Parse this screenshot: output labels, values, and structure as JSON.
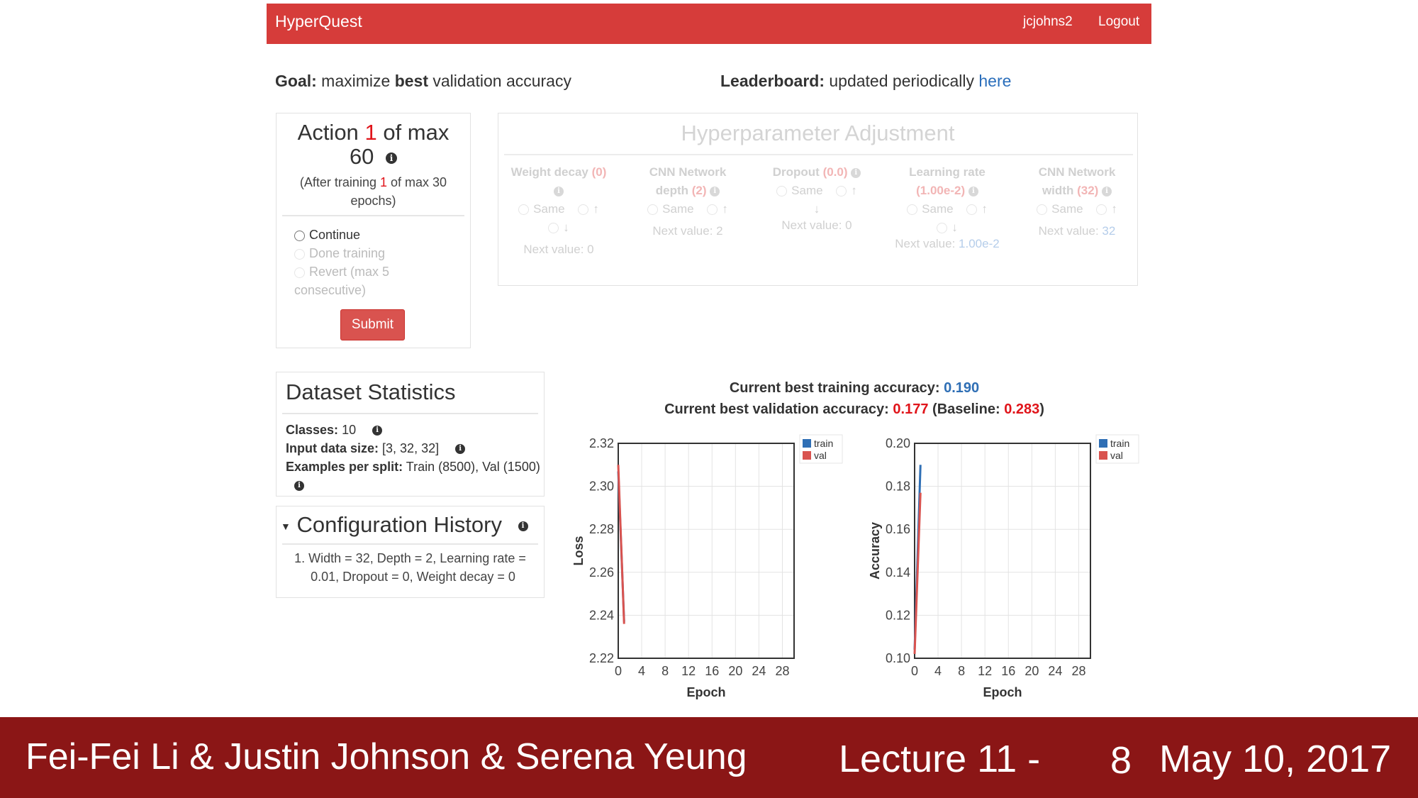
{
  "navbar": {
    "brand": "HyperQuest",
    "user": "jcjohns2",
    "logout": "Logout"
  },
  "goal": {
    "label": "Goal:",
    "text_pre": "maximize",
    "text_bold": "best",
    "text_post": "validation accuracy"
  },
  "leaderboard": {
    "label": "Leaderboard:",
    "text": "updated periodically",
    "link": "here"
  },
  "action_panel": {
    "title_pre": "Action",
    "action_num": "1",
    "title_mid": "of max",
    "max": "60",
    "sub_pre": "(After training",
    "sub_num": "1",
    "sub_post": "of max 30",
    "sub_end": "epochs)",
    "options": [
      "Continue",
      "Done training",
      "Revert (max 5",
      "consecutive)"
    ],
    "submit": "Submit"
  },
  "hyperparams": {
    "title": "Hyperparameter Adjustment",
    "same_label": "Same",
    "columns": [
      {
        "name": "Weight decay",
        "value": "(0)",
        "next_label": "Next value:",
        "next_value": "0"
      },
      {
        "name": "CNN Network",
        "name2": "depth",
        "value": "(2)",
        "next_label": "Next value:",
        "next_value": "2"
      },
      {
        "name": "Dropout",
        "value": "(0.0)",
        "next_label": "Next value:",
        "next_value": "0"
      },
      {
        "name": "Learning rate",
        "value": "(1.00e-2)",
        "next_label": "Next value:",
        "next_value": "1.00e-2"
      },
      {
        "name": "CNN Network",
        "name2": "width",
        "value": "(32)",
        "next_label": "Next value:",
        "next_value": "32"
      }
    ]
  },
  "dataset": {
    "title": "Dataset Statistics",
    "classes_label": "Classes:",
    "classes_value": "10",
    "input_label": "Input data size:",
    "input_value": "[3, 32, 32]",
    "examples_label": "Examples per split:",
    "examples_value": "Train (8500), Val (1500)"
  },
  "config_history": {
    "title": "Configuration History",
    "items": [
      "1. Width = 32, Depth = 2, Learning rate =",
      "0.01, Dropout = 0, Weight decay = 0"
    ]
  },
  "summary": {
    "train_label": "Current best training accuracy:",
    "train_value": "0.190",
    "val_label": "Current best validation accuracy:",
    "val_value": "0.177",
    "baseline_pre": "(Baseline:",
    "baseline_value": "0.283",
    "baseline_post": ")"
  },
  "colors": {
    "train": "#2f6fb5",
    "val": "#d9534f",
    "navbar": "#d63c3a",
    "footer": "#8b1616"
  },
  "chart_data": [
    {
      "type": "line",
      "xlabel": "Epoch",
      "ylabel": "Loss",
      "xlim": [
        0,
        30
      ],
      "ylim": [
        2.22,
        2.32
      ],
      "xticks": [
        "0",
        "4",
        "8",
        "12",
        "16",
        "20",
        "24",
        "28"
      ],
      "yticks": [
        "2.32",
        "2.30",
        "2.28",
        "2.26",
        "2.24",
        "2.22"
      ],
      "grid": true,
      "legend": "top-right",
      "series": [
        {
          "name": "train",
          "x": [
            0,
            1
          ],
          "y": [
            2.307,
            2.237
          ]
        },
        {
          "name": "val",
          "x": [
            0,
            1
          ],
          "y": [
            2.31,
            2.236
          ]
        }
      ]
    },
    {
      "type": "line",
      "xlabel": "Epoch",
      "ylabel": "Accuracy",
      "xlim": [
        0,
        30
      ],
      "ylim": [
        0.1,
        0.2
      ],
      "xticks": [
        "0",
        "4",
        "8",
        "12",
        "16",
        "20",
        "24",
        "28"
      ],
      "yticks": [
        "0.20",
        "0.18",
        "0.16",
        "0.14",
        "0.12",
        "0.10"
      ],
      "grid": true,
      "legend": "top-right",
      "series": [
        {
          "name": "train",
          "x": [
            0,
            1
          ],
          "y": [
            0.104,
            0.19
          ]
        },
        {
          "name": "val",
          "x": [
            0,
            1
          ],
          "y": [
            0.102,
            0.177
          ]
        }
      ]
    }
  ],
  "footer": {
    "authors": "Fei-Fei Li & Justin Johnson & Serena Yeung",
    "lecture": "Lecture 11 -",
    "page": "8",
    "date": "May 10, 2017"
  }
}
